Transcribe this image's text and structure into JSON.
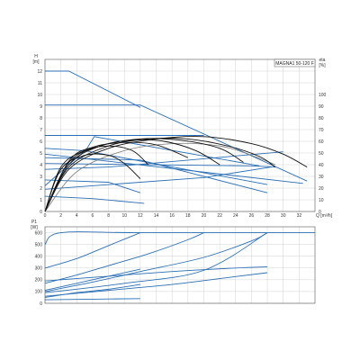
{
  "chart_data": [
    {
      "type": "line",
      "title": "MAGNA1 50-120 F",
      "x_unit": "Q [m³/h]",
      "y_unit_left": "H [m]",
      "y_unit_right": "eta [%]",
      "xlim": [
        0,
        34
      ],
      "ylim": [
        0,
        13
      ],
      "y2lim": [
        0,
        130
      ],
      "xticks": [
        0,
        2,
        4,
        6,
        8,
        10,
        12,
        14,
        16,
        18,
        20,
        22,
        24,
        26,
        28,
        30,
        32
      ],
      "yticks": [
        0,
        1,
        2,
        3,
        4,
        5,
        6,
        7,
        8,
        9,
        10,
        11,
        12
      ],
      "y2ticks": [
        0,
        10,
        20,
        30,
        40,
        50,
        60,
        70,
        80,
        90,
        100
      ],
      "grid": true,
      "colors": {
        "head": "#2a6fb5",
        "efficiency": "#111111",
        "efficiency_light": "#777777"
      },
      "head_series": [
        {
          "x": [
            0,
            2,
            3,
            12
          ],
          "y": [
            12,
            12,
            12,
            8.9
          ]
        },
        {
          "x": [
            0,
            12,
            33
          ],
          "y": [
            9.1,
            9.1,
            2.6
          ]
        },
        {
          "x": [
            0,
            5.2,
            6.2,
            27
          ],
          "y": [
            2.2,
            5.3,
            6.4,
            3.9
          ]
        },
        {
          "x": [
            0,
            14,
            20
          ],
          "y": [
            6.5,
            6.5,
            6.5
          ]
        },
        {
          "x": [
            0,
            5,
            28
          ],
          "y": [
            5.4,
            5.2,
            2.3
          ]
        },
        {
          "x": [
            0,
            8,
            30
          ],
          "y": [
            3.6,
            3.8,
            5.1
          ]
        },
        {
          "x": [
            0,
            12,
            28
          ],
          "y": [
            4.6,
            4.4,
            1.6
          ]
        },
        {
          "x": [
            0,
            26,
            29
          ],
          "y": [
            4.1,
            3.9,
            3.8
          ]
        },
        {
          "x": [
            0,
            8,
            12
          ],
          "y": [
            2.7,
            2.5,
            1.6
          ]
        },
        {
          "x": [
            0,
            20,
            28.5
          ],
          "y": [
            1.9,
            2.9,
            3.8
          ]
        },
        {
          "x": [
            0,
            6,
            12.5
          ],
          "y": [
            1.3,
            1.1,
            0.7
          ]
        },
        {
          "x": [
            0,
            4,
            32.5
          ],
          "y": [
            4.9,
            4.6,
            2.4
          ]
        }
      ],
      "efficiency_series": [
        {
          "x": [
            0,
            3,
            8,
            14,
            20,
            26,
            30,
            33
          ],
          "y": [
            0,
            36,
            54,
            62,
            64,
            58,
            49,
            38
          ]
        },
        {
          "x": [
            0,
            3,
            8,
            13,
            18,
            23,
            27,
            29
          ],
          "y": [
            0,
            38,
            56,
            62,
            62,
            56,
            47,
            38
          ]
        },
        {
          "x": [
            0,
            3,
            7,
            12,
            17,
            22,
            25
          ],
          "y": [
            0,
            40,
            56,
            62,
            61,
            54,
            42
          ]
        },
        {
          "x": [
            0,
            3,
            7,
            11,
            15,
            19,
            22
          ],
          "y": [
            0,
            42,
            56,
            61,
            60,
            52,
            40
          ]
        },
        {
          "x": [
            0,
            3,
            6,
            10,
            14,
            18
          ],
          "y": [
            0,
            43,
            55,
            59,
            57,
            46
          ]
        },
        {
          "x": [
            0,
            2,
            5,
            8,
            11,
            13
          ],
          "y": [
            0,
            38,
            52,
            56,
            52,
            40
          ]
        },
        {
          "x": [
            0,
            2,
            5,
            8,
            10,
            12
          ],
          "y": [
            0,
            36,
            48,
            48,
            41,
            28
          ]
        }
      ],
      "efficiency_light_series": [
        {
          "x": [
            0,
            4,
            10,
            16,
            22,
            26,
            29
          ],
          "y": [
            0,
            34,
            52,
            58,
            56,
            48,
            40
          ]
        }
      ]
    },
    {
      "type": "line",
      "x_unit": "Q [m³/h]",
      "y_unit_left": "P1 [W]",
      "xlim": [
        0,
        34
      ],
      "ylim": [
        0,
        650
      ],
      "xticks": [
        0,
        2,
        4,
        6,
        8,
        10,
        12,
        14,
        16,
        18,
        20,
        22,
        24,
        26,
        28,
        30,
        32
      ],
      "yticks": [
        0,
        100,
        200,
        300,
        400,
        500,
        600
      ],
      "grid": true,
      "colors": {
        "power": "#2a6fb5"
      },
      "power_series": [
        {
          "x": [
            0,
            2,
            12,
            34
          ],
          "y": [
            500,
            600,
            600,
            600
          ]
        },
        {
          "x": [
            0,
            4,
            8,
            12
          ],
          "y": [
            300,
            380,
            490,
            600
          ]
        },
        {
          "x": [
            0,
            4,
            8,
            13,
            18,
            20
          ],
          "y": [
            170,
            240,
            320,
            420,
            540,
            600
          ]
        },
        {
          "x": [
            0,
            6,
            12,
            20,
            26,
            28
          ],
          "y": [
            100,
            180,
            270,
            390,
            530,
            600
          ]
        },
        {
          "x": [
            0,
            4,
            8,
            12
          ],
          "y": [
            110,
            170,
            230,
            290
          ]
        },
        {
          "x": [
            0,
            4,
            8,
            12
          ],
          "y": [
            50,
            90,
            120,
            160
          ]
        },
        {
          "x": [
            0,
            8,
            16,
            24,
            28
          ],
          "y": [
            190,
            230,
            270,
            300,
            310
          ]
        },
        {
          "x": [
            0,
            8,
            16,
            22,
            28
          ],
          "y": [
            60,
            110,
            160,
            210,
            260
          ]
        },
        {
          "x": [
            0,
            10,
            20,
            28
          ],
          "y": [
            90,
            170,
            280,
            600
          ]
        },
        {
          "x": [
            0,
            6,
            12
          ],
          "y": [
            30,
            35,
            40
          ]
        }
      ]
    }
  ]
}
